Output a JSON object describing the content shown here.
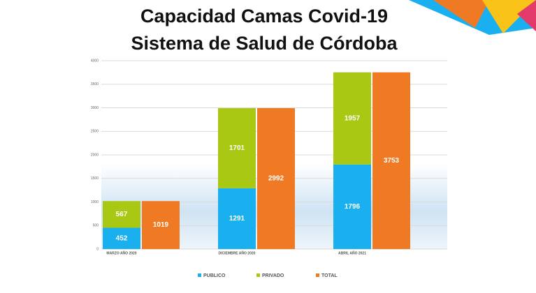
{
  "chart_data": {
    "type": "bar",
    "stacked": true,
    "title": "Capacidad Camas Covid-19",
    "subtitle": "Sistema de Salud de Córdoba",
    "categories": [
      "MARZO AÑO 2020",
      "DICIEMBRE AÑO 2020",
      "ABRIL AÑO 2021"
    ],
    "series": [
      {
        "name": "PUBLICO",
        "color": "#1ab0ef",
        "stack": 0,
        "values": [
          452,
          1291,
          1796
        ]
      },
      {
        "name": "PRIVADO",
        "color": "#a9c814",
        "stack": 0,
        "values": [
          567,
          1701,
          1957
        ]
      },
      {
        "name": "TOTAL",
        "color": "#f07a24",
        "stack": 1,
        "values": [
          1019,
          2992,
          3753
        ]
      }
    ],
    "ylim": [
      0,
      4000
    ],
    "yticks": [
      0,
      500,
      1000,
      1500,
      2000,
      2500,
      3000,
      3500,
      4000
    ],
    "grid": true,
    "legend": "bottom"
  }
}
